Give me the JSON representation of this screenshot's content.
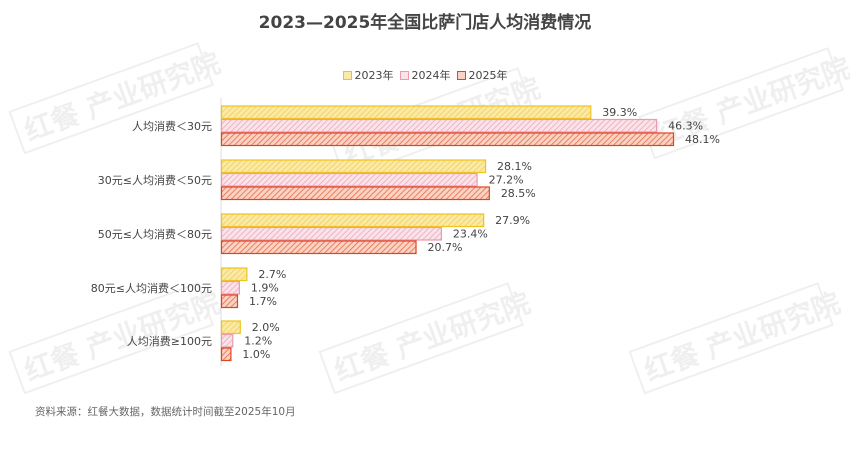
{
  "chart_data": {
    "type": "bar",
    "orientation": "horizontal",
    "title": "2023—2025年全国比萨门店人均消费情况",
    "categories": [
      "人均消费＜30元",
      "30元≤人均消费＜50元",
      "50元≤人均消费＜80元",
      "80元≤人均消费＜100元",
      "人均消费≥100元"
    ],
    "series": [
      {
        "name": "2023年",
        "values": [
          39.3,
          28.1,
          27.9,
          2.7,
          2.0
        ],
        "labels": [
          "39.3%",
          "28.1%",
          "27.9%",
          "2.7%",
          "2.0%"
        ],
        "fill": "#fbe9a6",
        "stroke": "#f0c419",
        "hatch": "#f2cf5a"
      },
      {
        "name": "2024年",
        "values": [
          46.3,
          27.2,
          23.4,
          1.9,
          1.2
        ],
        "labels": [
          "46.3%",
          "27.2%",
          "23.4%",
          "1.9%",
          "1.2%"
        ],
        "fill": "#fbe3ea",
        "stroke": "#ec9aad",
        "hatch": "#eba8b9"
      },
      {
        "name": "2025年",
        "values": [
          48.1,
          28.5,
          20.7,
          1.7,
          1.0
        ],
        "labels": [
          "48.1%",
          "28.5%",
          "20.7%",
          "1.7%",
          "1.0%"
        ],
        "fill": "#fad3c4",
        "stroke": "#e0451f",
        "hatch": "#e76b45"
      }
    ],
    "xlabel": "",
    "ylabel": "",
    "xlim": [
      0,
      50
    ],
    "grid": false,
    "legend_position": "top-center"
  },
  "source": "资料来源：红餐大数据，数据统计时间截至2025年10月",
  "watermark": "红餐 产业研究院"
}
